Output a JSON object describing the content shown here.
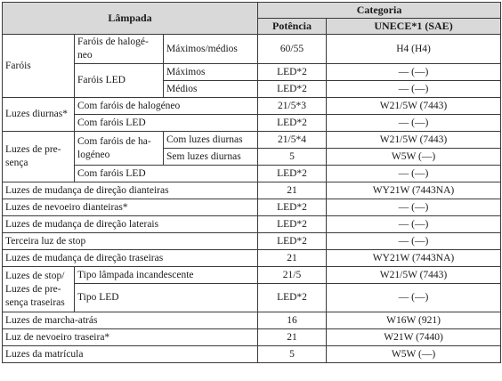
{
  "header": {
    "lamp": "Lâmpada",
    "category": "Categoria",
    "power": "Potência",
    "unece": "UNECE*1 (SAE)"
  },
  "rows": {
    "farois": "Faróis",
    "farois_halogeneo": "Faróis de halogé-neo",
    "maximos_medios": "Máximos/médios",
    "maximos_medios_power": "60/55",
    "maximos_medios_unece": "H4 (H4)",
    "farois_led": "Faróis LED",
    "maximos": "Máximos",
    "maximos_power": "LED*2",
    "maximos_unece": "— (—)",
    "medios": "Médios",
    "medios_power": "LED*2",
    "medios_unece": "— (—)",
    "luzes_diurnas": "Luzes diurnas*",
    "ld_halogeneo": "Com faróis de halogéneo",
    "ld_halogeneo_power": "21/5*3",
    "ld_halogeneo_unece": "W21/5W (7443)",
    "ld_led": "Com faróis LED",
    "ld_led_power": "LED*2",
    "ld_led_unece": "— (—)",
    "luzes_presenca": "Luzes de pre-sença",
    "lp_halogeneo": "Com faróis de ha-logéneo",
    "lp_com_diurnas": "Com luzes diurnas",
    "lp_com_diurnas_power": "21/5*4",
    "lp_com_diurnas_unece": "W21/5W (7443)",
    "lp_sem_diurnas": "Sem luzes diurnas",
    "lp_sem_diurnas_power": "5",
    "lp_sem_diurnas_unece": "W5W (—)",
    "lp_led": "Com faróis LED",
    "lp_led_power": "LED*2",
    "lp_led_unece": "— (—)",
    "mud_dianteiras": "Luzes de mudança de direção dianteiras",
    "mud_dianteiras_power": "21",
    "mud_dianteiras_unece": "WY21W (7443NA)",
    "nevoeiro_dianteiras": "Luzes de nevoeiro dianteiras*",
    "nevoeiro_dianteiras_power": "LED*2",
    "nevoeiro_dianteiras_unece": "— (—)",
    "mud_laterais": "Luzes de mudança de direção laterais",
    "mud_laterais_power": "LED*2",
    "mud_laterais_unece": "— (—)",
    "terceira_stop": "Terceira luz de stop",
    "terceira_stop_power": "LED*2",
    "terceira_stop_unece": "— (—)",
    "mud_traseiras": "Luzes de mudança de direção traseiras",
    "mud_traseiras_power": "21",
    "mud_traseiras_unece": "WY21W (7443NA)",
    "stop_presenca": "Luzes de stop/ Luzes de pre-sença traseiras",
    "tipo_incandescente": "Tipo lâmpada incandescente",
    "tipo_incandescente_power": "21/5",
    "tipo_incandescente_unece": "W21/5W (7443)",
    "tipo_led": "Tipo LED",
    "tipo_led_power": "LED*2",
    "tipo_led_unece": "— (—)",
    "marcha_atras": "Luzes de marcha-atrás",
    "marcha_atras_power": "16",
    "marcha_atras_unece": "W16W (921)",
    "nevoeiro_traseira": "Luz de nevoeiro traseira*",
    "nevoeiro_traseira_power": "21",
    "nevoeiro_traseira_unece": "W21W (7440)",
    "matricula": "Luzes da matrícula",
    "matricula_power": "5",
    "matricula_unece": "W5W (—)"
  }
}
